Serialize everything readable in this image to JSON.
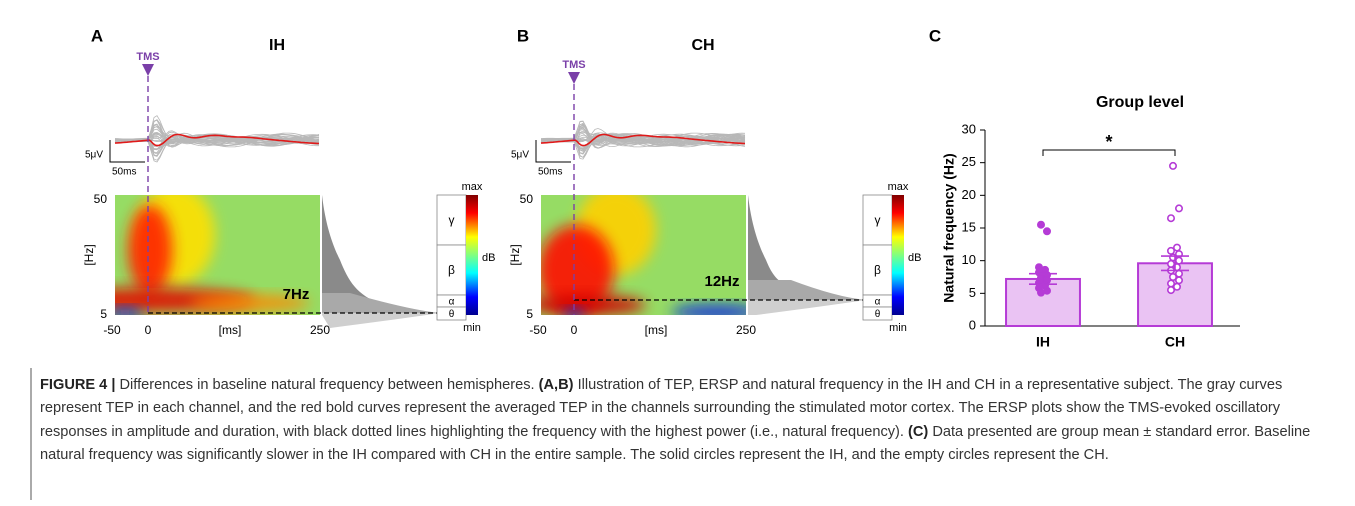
{
  "panels": [
    {
      "letter": "A",
      "title": "IH",
      "marker": "TMS",
      "scale_v": "5μV",
      "scale_t": "50ms",
      "y_ticks": [
        50,
        5
      ],
      "y_label": "[Hz]",
      "x_ticks": [
        -50,
        0,
        250
      ],
      "x_label": "[ms]",
      "peak": "7Hz",
      "cbar_max": "max",
      "cbar_unit": "dB",
      "cbar_min": "min",
      "bands": [
        "γ",
        "β",
        "α",
        "θ"
      ]
    },
    {
      "letter": "B",
      "title": "CH",
      "marker": "TMS",
      "scale_v": "5μV",
      "scale_t": "50ms",
      "y_ticks": [
        50,
        5
      ],
      "y_label": "[Hz]",
      "x_ticks": [
        -50,
        0,
        250
      ],
      "x_label": "[ms]",
      "peak": "12Hz",
      "cbar_max": "max",
      "cbar_unit": "dB",
      "cbar_min": "min",
      "bands": [
        "γ",
        "β",
        "α",
        "θ"
      ]
    }
  ],
  "chart_data": {
    "type": "bar",
    "letter": "C",
    "title": "Group level",
    "ylabel": "Natural frequency (Hz)",
    "categories": [
      "IH",
      "CH"
    ],
    "values": [
      7.2,
      9.6
    ],
    "errors": [
      0.8,
      1.1
    ],
    "points": [
      [
        15.5,
        14.5,
        9,
        8.6,
        8.2,
        7.8,
        7.4,
        7,
        6.6,
        6.2,
        5.8,
        5.4,
        5.1
      ],
      [
        24.5,
        18,
        16.5,
        12,
        11.5,
        11,
        10.5,
        10,
        9.5,
        9,
        8.5,
        8,
        7.5,
        7,
        6.5,
        6,
        5.5
      ]
    ],
    "point_fill": [
      "solid",
      "empty"
    ],
    "color": "#eac3f3",
    "edge": "#b53bd6",
    "significance": "*",
    "ylim": [
      0,
      30
    ],
    "yticks": [
      0,
      5,
      10,
      15,
      20,
      25,
      30
    ]
  },
  "caption": {
    "label": "FIGURE 4 |",
    "text1": " Differences in baseline natural frequency between hemispheres. ",
    "ref1": "(A,B)",
    "text2": " Illustration of TEP, ERSP and natural frequency in the IH and CH in a representative subject. The gray curves represent TEP in each channel, and the red bold curves represent the averaged TEP in the channels surrounding the stimulated motor cortex. The ERSP plots show the TMS-evoked oscillatory responses in amplitude and duration, with black dotted lines highlighting the frequency with the highest power (i.e., natural frequency). ",
    "ref2": "(C)",
    "text3": " Data presented are group mean ± standard error. Baseline natural frequency was significantly slower in the IH compared with CH in the entire sample. The solid circles represent the IH, and the empty circles represent the CH."
  }
}
